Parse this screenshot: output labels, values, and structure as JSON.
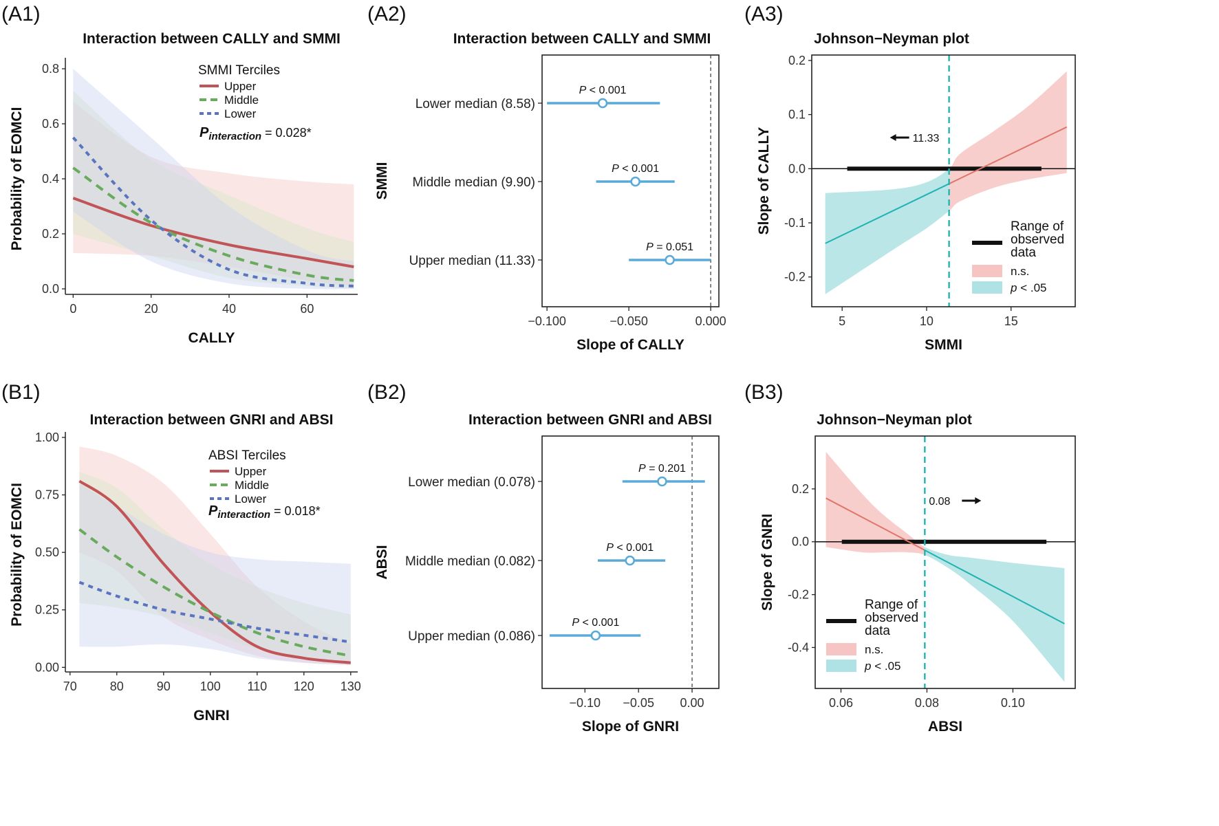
{
  "chart_data": [
    {
      "id": "A1",
      "type": "line",
      "panel_label": "(A1)",
      "title": "Interaction between CALLY and SMMI",
      "xlabel": "CALLY",
      "ylabel": "Probability of EOMCI",
      "xlim": [
        -2,
        73
      ],
      "ylim": [
        -0.02,
        0.82
      ],
      "xticks": [
        0,
        20,
        40,
        60
      ],
      "xtick_labels": [
        "0",
        "20",
        "40",
        "60"
      ],
      "yticks": [
        0,
        0.2,
        0.4,
        0.6,
        0.8
      ],
      "ytick_labels": [
        "0.0",
        "0.2",
        "0.4",
        "0.6",
        "0.8"
      ],
      "legend_title": "SMMI Terciles",
      "legend_position": "top-right",
      "p_interaction_label": {
        "p": "P",
        "sub": "interaction",
        "value": " = 0.028*"
      },
      "series": [
        {
          "name": "Upper",
          "color": "#c05457",
          "band_color": "#f4c8c6",
          "dash": "solid",
          "x": [
            0,
            20,
            40,
            60,
            72
          ],
          "y": [
            0.33,
            0.23,
            0.16,
            0.11,
            0.08
          ],
          "lower": [
            0.13,
            0.12,
            0.08,
            0.03,
            0.01
          ],
          "upper": [
            0.68,
            0.48,
            0.42,
            0.39,
            0.38
          ]
        },
        {
          "name": "Middle",
          "color": "#6aaa5e",
          "band_color": "#d8e6c7",
          "dash": "12,9",
          "x": [
            0,
            20,
            40,
            60,
            72
          ],
          "y": [
            0.44,
            0.24,
            0.12,
            0.05,
            0.03
          ],
          "lower": [
            0.2,
            0.12,
            0.04,
            0.01,
            0.0
          ],
          "upper": [
            0.72,
            0.47,
            0.34,
            0.22,
            0.17
          ]
        },
        {
          "name": "Lower",
          "color": "#5a74c0",
          "band_color": "#ccd4ef",
          "dash": "7,7",
          "x": [
            0,
            20,
            40,
            60,
            72
          ],
          "y": [
            0.55,
            0.25,
            0.07,
            0.02,
            0.01
          ],
          "lower": [
            0.28,
            0.1,
            0.02,
            0.0,
            0.0
          ],
          "upper": [
            0.8,
            0.55,
            0.3,
            0.14,
            0.1
          ]
        }
      ]
    },
    {
      "id": "A2",
      "type": "scatter",
      "panel_label": "(A2)",
      "title": "Interaction between CALLY and SMMI",
      "xlabel": "Slope of CALLY",
      "ylabel": "SMMI",
      "xlim": [
        -0.103,
        0.005
      ],
      "xticks": [
        -0.1,
        -0.05,
        0.0
      ],
      "xtick_labels": [
        "−0.100",
        "−0.050",
        "0.000"
      ],
      "reference_line_x": 0.0,
      "rows": [
        {
          "label": "Lower median (8.58)",
          "estimate": -0.066,
          "ci": [
            -0.1,
            -0.031
          ],
          "p_symbol": "P",
          "p_text": " < 0.001"
        },
        {
          "label": "Middle median (9.90)",
          "estimate": -0.046,
          "ci": [
            -0.07,
            -0.022
          ],
          "p_symbol": "P",
          "p_text": " < 0.001"
        },
        {
          "label": "Upper median (11.33)",
          "estimate": -0.025,
          "ci": [
            -0.05,
            0.0
          ],
          "p_symbol": "P",
          "p_text": " = 0.051"
        }
      ],
      "color": "#5aaad8"
    },
    {
      "id": "A3",
      "type": "line",
      "panel_label": "(A3)",
      "title": "Johnson−Neyman plot",
      "xlabel": "SMMI",
      "ylabel": "Slope of CALLY",
      "xlim": [
        3.2,
        18.8
      ],
      "ylim": [
        -0.255,
        0.21
      ],
      "xticks": [
        5,
        10,
        15
      ],
      "xtick_labels": [
        "5",
        "10",
        "15"
      ],
      "yticks": [
        -0.2,
        -0.1,
        0.0,
        0.1,
        0.2
      ],
      "ytick_labels": [
        "-0.2",
        "-0.1",
        "0.0",
        "0.1",
        "0.2"
      ],
      "jn_point": 11.33,
      "jn_label": "11.33",
      "jn_arrow": "left",
      "observed_range": [
        5.3,
        16.8
      ],
      "slope_line": {
        "x": [
          4,
          18.3
        ],
        "y": [
          -0.138,
          0.077
        ]
      },
      "band_lower": {
        "x": [
          4,
          8,
          10,
          11.33,
          12,
          14,
          16,
          18.3
        ],
        "y": [
          -0.232,
          -0.15,
          -0.11,
          -0.078,
          -0.06,
          -0.035,
          -0.02,
          -0.008
        ]
      },
      "band_upper": {
        "x": [
          4,
          8,
          10,
          11.33,
          12,
          14,
          16,
          18.3
        ],
        "y": [
          -0.045,
          -0.038,
          -0.025,
          0.0,
          0.028,
          0.07,
          0.115,
          0.18
        ]
      },
      "legend": {
        "range_label": [
          "Range of",
          "observed",
          "data"
        ],
        "ns_label": "n.s.",
        "sig_p": "p",
        "sig_label": " < .05",
        "position": "bottom-right"
      },
      "colors": {
        "ns": "#f6c5c3",
        "sig": "#aee2e4",
        "ns_line": "#e0766a",
        "sig_line": "#21b3b2",
        "jn": "#21b3b2"
      }
    },
    {
      "id": "B1",
      "type": "line",
      "panel_label": "(B1)",
      "title": "Interaction between GNRI and ABSI",
      "xlabel": "GNRI",
      "ylabel": "Probability of EOMCI",
      "xlim": [
        69,
        131.5
      ],
      "ylim": [
        -0.02,
        1.0
      ],
      "xticks": [
        70,
        80,
        90,
        100,
        110,
        120,
        130
      ],
      "xtick_labels": [
        "70",
        "80",
        "90",
        "100",
        "110",
        "120",
        "130"
      ],
      "yticks": [
        0,
        0.25,
        0.5,
        0.75,
        1.0
      ],
      "ytick_labels": [
        "0.00",
        "0.25",
        "0.50",
        "0.75",
        "1.00"
      ],
      "legend_title": "ABSI Terciles",
      "legend_position": "top-right",
      "p_interaction_label": {
        "p": "P",
        "sub": "interaction",
        "value": " = 0.018*"
      },
      "series": [
        {
          "name": "Upper",
          "color": "#c05457",
          "band_color": "#f4c8c6",
          "dash": "solid",
          "x": [
            72,
            80,
            90,
            100,
            110,
            120,
            130
          ],
          "y": [
            0.81,
            0.7,
            0.45,
            0.24,
            0.09,
            0.04,
            0.02
          ],
          "lower": [
            0.5,
            0.42,
            0.22,
            0.12,
            0.05,
            0.02,
            0.01
          ],
          "upper": [
            0.96,
            0.92,
            0.8,
            0.58,
            0.35,
            0.2,
            0.1
          ]
        },
        {
          "name": "Middle",
          "color": "#6aaa5e",
          "band_color": "#d8e6c7",
          "dash": "12,9",
          "x": [
            72,
            80,
            90,
            100,
            110,
            120,
            130
          ],
          "y": [
            0.6,
            0.48,
            0.35,
            0.24,
            0.15,
            0.09,
            0.05
          ],
          "lower": [
            0.28,
            0.26,
            0.22,
            0.15,
            0.08,
            0.04,
            0.02
          ],
          "upper": [
            0.85,
            0.78,
            0.6,
            0.45,
            0.35,
            0.28,
            0.23
          ]
        },
        {
          "name": "Lower",
          "color": "#5a74c0",
          "band_color": "#ccd4ef",
          "dash": "7,7",
          "x": [
            72,
            80,
            90,
            100,
            110,
            120,
            130
          ],
          "y": [
            0.37,
            0.31,
            0.25,
            0.21,
            0.17,
            0.14,
            0.11
          ],
          "lower": [
            0.09,
            0.09,
            0.1,
            0.08,
            0.04,
            0.02,
            0.01
          ],
          "upper": [
            0.8,
            0.7,
            0.58,
            0.5,
            0.47,
            0.46,
            0.45
          ]
        }
      ]
    },
    {
      "id": "B2",
      "type": "scatter",
      "panel_label": "(B2)",
      "title": "Interaction between GNRI and ABSI",
      "xlabel": "Slope of GNRI",
      "ylabel": "ABSI",
      "xlim": [
        -0.14,
        0.025
      ],
      "xticks": [
        -0.1,
        -0.05,
        0.0
      ],
      "xtick_labels": [
        "−0.10",
        "−0.05",
        "0.00"
      ],
      "reference_line_x": 0.0,
      "rows": [
        {
          "label": "Lower median (0.078)",
          "estimate": -0.028,
          "ci": [
            -0.065,
            0.012
          ],
          "p_symbol": "P",
          "p_text": " = 0.201"
        },
        {
          "label": "Middle median (0.082)",
          "estimate": -0.058,
          "ci": [
            -0.088,
            -0.025
          ],
          "p_symbol": "P",
          "p_text": " < 0.001"
        },
        {
          "label": "Upper median (0.086)",
          "estimate": -0.09,
          "ci": [
            -0.133,
            -0.048
          ],
          "p_symbol": "P",
          "p_text": " < 0.001"
        }
      ],
      "color": "#5aaad8"
    },
    {
      "id": "B3",
      "type": "line",
      "panel_label": "(B3)",
      "title": "Johnson−Neyman plot",
      "xlabel": "ABSI",
      "ylabel": "Slope of GNRI",
      "xlim": [
        0.054,
        0.1145
      ],
      "ylim": [
        -0.555,
        0.4
      ],
      "xticks": [
        0.06,
        0.08,
        0.1
      ],
      "xtick_labels": [
        "0.06",
        "0.08",
        "0.10"
      ],
      "yticks": [
        -0.4,
        -0.2,
        0.0,
        0.2
      ],
      "ytick_labels": [
        "-0.4",
        "-0.2",
        "0.0",
        "0.2"
      ],
      "jn_point": 0.0795,
      "jn_label": "0.08",
      "jn_arrow": "right",
      "observed_range": [
        0.0602,
        0.1078
      ],
      "slope_line": {
        "x": [
          0.0565,
          0.112
        ],
        "y": [
          0.165,
          -0.31
        ]
      },
      "band_lower": {
        "x": [
          0.0565,
          0.065,
          0.07,
          0.0755,
          0.0795,
          0.085,
          0.09,
          0.1,
          0.112
        ],
        "y": [
          -0.02,
          -0.04,
          -0.04,
          -0.04,
          -0.05,
          -0.1,
          -0.16,
          -0.3,
          -0.53
        ]
      },
      "band_upper": {
        "x": [
          0.0565,
          0.065,
          0.07,
          0.0755,
          0.0795,
          0.085,
          0.09,
          0.1,
          0.112
        ],
        "y": [
          0.34,
          0.18,
          0.1,
          0.03,
          -0.02,
          -0.05,
          -0.06,
          -0.08,
          -0.1
        ]
      },
      "legend": {
        "range_label": [
          "Range of",
          "observed",
          "data"
        ],
        "ns_label": "n.s.",
        "sig_p": "p",
        "sig_label": " < .05",
        "position": "bottom-left"
      },
      "colors": {
        "ns": "#f6c5c3",
        "sig": "#aee2e4",
        "ns_line": "#e0766a",
        "sig_line": "#21b3b2",
        "jn": "#21b3b2"
      }
    }
  ]
}
